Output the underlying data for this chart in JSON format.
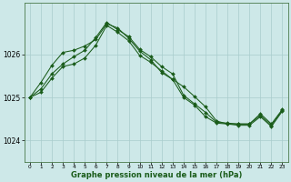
{
  "title": "Graphe pression niveau de la mer (hPa)",
  "bg_color": "#cde8e8",
  "grid_color": "#a8cccc",
  "line_color": "#1a5c1a",
  "marker_color": "#1a5c1a",
  "xlim": [
    -0.5,
    23.5
  ],
  "ylim": [
    1023.5,
    1027.2
  ],
  "yticks": [
    1024,
    1025,
    1026
  ],
  "xticks": [
    0,
    1,
    2,
    3,
    4,
    5,
    6,
    7,
    8,
    9,
    10,
    11,
    12,
    13,
    14,
    15,
    16,
    17,
    18,
    19,
    20,
    21,
    22,
    23
  ],
  "series": [
    [
      1025.0,
      1025.2,
      1025.55,
      1025.78,
      1025.95,
      1026.1,
      1026.4,
      1026.75,
      1026.58,
      1026.42,
      1026.12,
      1025.95,
      1025.72,
      1025.55,
      1025.05,
      1024.85,
      1024.65,
      1024.42,
      1024.4,
      1024.38,
      1024.38,
      1024.62,
      1024.38,
      1024.72
    ],
    [
      1025.0,
      1025.35,
      1025.75,
      1026.05,
      1026.1,
      1026.2,
      1026.35,
      1026.72,
      1026.62,
      1026.38,
      1026.08,
      1025.88,
      1025.58,
      1025.42,
      1025.0,
      1024.82,
      1024.55,
      1024.4,
      1024.38,
      1024.38,
      1024.38,
      1024.58,
      1024.35,
      1024.7
    ],
    [
      1025.0,
      1025.12,
      1025.45,
      1025.72,
      1025.78,
      1025.92,
      1026.22,
      1026.68,
      1026.52,
      1026.32,
      1025.98,
      1025.82,
      1025.62,
      1025.42,
      1025.25,
      1025.02,
      1024.78,
      1024.45,
      1024.38,
      1024.35,
      1024.35,
      1024.55,
      1024.32,
      1024.68
    ]
  ],
  "xlabel_fontsize": 6.0,
  "xtick_fontsize": 4.2,
  "ytick_fontsize": 5.5
}
